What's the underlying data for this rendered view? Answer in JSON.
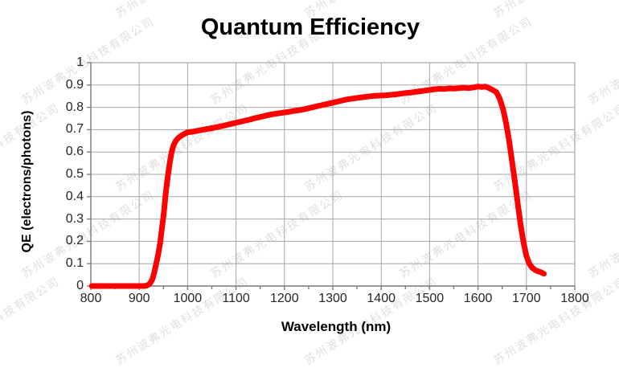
{
  "page": {
    "background_color": "#FFFFFF"
  },
  "watermark": {
    "text": "苏州波弗光电科技有限公司",
    "color": "#C6C6C6",
    "opacity": 0.55
  },
  "colors": {
    "grid": "#A6A6A6",
    "axis": "#7F7F7F",
    "tick_text": "#262626",
    "title_text": "#000000",
    "curve": "#FF0000"
  },
  "chart_data": {
    "type": "line",
    "title": "Quantum Efficiency",
    "xlabel": "Wavelength (nm)",
    "ylabel": "QE (electrons/photons)",
    "xlim": [
      800,
      1800
    ],
    "ylim": [
      0,
      1
    ],
    "x_ticks": [
      800,
      900,
      1000,
      1100,
      1200,
      1300,
      1400,
      1500,
      1600,
      1700,
      1800
    ],
    "x_minor_tick_step": 50,
    "y_ticks": [
      0,
      0.1,
      0.2,
      0.3,
      0.4,
      0.5,
      0.6,
      0.7,
      0.8,
      0.9,
      1
    ],
    "y_tick_labels": [
      "0",
      "0.1",
      "0.2",
      "0.3",
      "0.4",
      "0.5",
      "0.6",
      "0.7",
      "0.8",
      "0.9",
      "1"
    ],
    "grid": true,
    "legend": "none",
    "series": [
      {
        "name": "QE",
        "color": "#FF0000",
        "line_width": 7,
        "points": [
          [
            802,
            0
          ],
          [
            820,
            0
          ],
          [
            840,
            0
          ],
          [
            860,
            0
          ],
          [
            880,
            0
          ],
          [
            900,
            0
          ],
          [
            910,
            0
          ],
          [
            916,
            0.002
          ],
          [
            922,
            0.01
          ],
          [
            927,
            0.03
          ],
          [
            931,
            0.06
          ],
          [
            935,
            0.1
          ],
          [
            939,
            0.14
          ],
          [
            943,
            0.19
          ],
          [
            947,
            0.26
          ],
          [
            951,
            0.33
          ],
          [
            955,
            0.42
          ],
          [
            959,
            0.49
          ],
          [
            963,
            0.55
          ],
          [
            967,
            0.6
          ],
          [
            971,
            0.63
          ],
          [
            975,
            0.648
          ],
          [
            980,
            0.662
          ],
          [
            986,
            0.672
          ],
          [
            993,
            0.681
          ],
          [
            1000,
            0.688
          ],
          [
            1010,
            0.691
          ],
          [
            1020,
            0.695
          ],
          [
            1030,
            0.699
          ],
          [
            1040,
            0.703
          ],
          [
            1050,
            0.707
          ],
          [
            1060,
            0.711
          ],
          [
            1070,
            0.716
          ],
          [
            1080,
            0.721
          ],
          [
            1090,
            0.726
          ],
          [
            1100,
            0.731
          ],
          [
            1110,
            0.736
          ],
          [
            1120,
            0.741
          ],
          [
            1130,
            0.746
          ],
          [
            1140,
            0.752
          ],
          [
            1150,
            0.757
          ],
          [
            1160,
            0.762
          ],
          [
            1170,
            0.767
          ],
          [
            1180,
            0.771
          ],
          [
            1190,
            0.774
          ],
          [
            1200,
            0.777
          ],
          [
            1210,
            0.78
          ],
          [
            1220,
            0.784
          ],
          [
            1230,
            0.787
          ],
          [
            1240,
            0.791
          ],
          [
            1250,
            0.796
          ],
          [
            1260,
            0.801
          ],
          [
            1270,
            0.806
          ],
          [
            1280,
            0.811
          ],
          [
            1290,
            0.816
          ],
          [
            1300,
            0.821
          ],
          [
            1310,
            0.826
          ],
          [
            1320,
            0.831
          ],
          [
            1330,
            0.836
          ],
          [
            1340,
            0.839
          ],
          [
            1350,
            0.842
          ],
          [
            1360,
            0.845
          ],
          [
            1370,
            0.848
          ],
          [
            1380,
            0.85
          ],
          [
            1390,
            0.852
          ],
          [
            1400,
            0.853
          ],
          [
            1410,
            0.854
          ],
          [
            1420,
            0.856
          ],
          [
            1430,
            0.858
          ],
          [
            1440,
            0.861
          ],
          [
            1450,
            0.864
          ],
          [
            1460,
            0.866
          ],
          [
            1470,
            0.869
          ],
          [
            1480,
            0.872
          ],
          [
            1490,
            0.875
          ],
          [
            1500,
            0.878
          ],
          [
            1510,
            0.881
          ],
          [
            1520,
            0.883
          ],
          [
            1530,
            0.882
          ],
          [
            1540,
            0.885
          ],
          [
            1550,
            0.884
          ],
          [
            1560,
            0.886
          ],
          [
            1570,
            0.888
          ],
          [
            1580,
            0.886
          ],
          [
            1590,
            0.889
          ],
          [
            1600,
            0.893
          ],
          [
            1608,
            0.891
          ],
          [
            1615,
            0.893
          ],
          [
            1622,
            0.887
          ],
          [
            1630,
            0.878
          ],
          [
            1638,
            0.868
          ],
          [
            1645,
            0.838
          ],
          [
            1652,
            0.79
          ],
          [
            1658,
            0.73
          ],
          [
            1664,
            0.655
          ],
          [
            1670,
            0.565
          ],
          [
            1676,
            0.47
          ],
          [
            1682,
            0.37
          ],
          [
            1688,
            0.275
          ],
          [
            1694,
            0.195
          ],
          [
            1700,
            0.135
          ],
          [
            1706,
            0.1
          ],
          [
            1712,
            0.082
          ],
          [
            1718,
            0.072
          ],
          [
            1724,
            0.066
          ],
          [
            1730,
            0.062
          ],
          [
            1736,
            0.055
          ]
        ]
      }
    ]
  }
}
